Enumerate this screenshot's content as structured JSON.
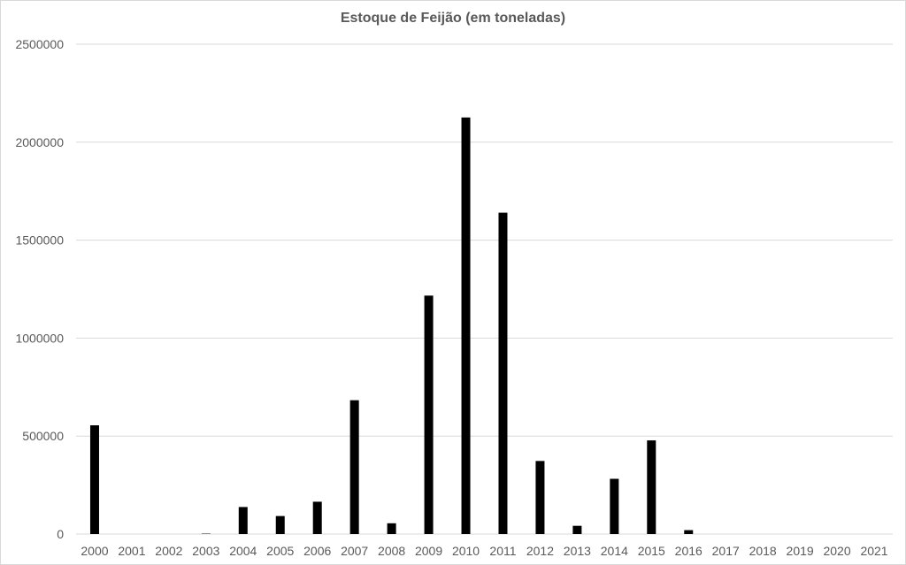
{
  "chart_data": {
    "type": "bar",
    "title": "Estoque de Feijão (em toneladas)",
    "xlabel": "",
    "ylabel": "",
    "categories": [
      "2000",
      "2001",
      "2002",
      "2003",
      "2004",
      "2005",
      "2006",
      "2007",
      "2008",
      "2009",
      "2010",
      "2011",
      "2012",
      "2013",
      "2014",
      "2015",
      "2016",
      "2017",
      "2018",
      "2019",
      "2020",
      "2021"
    ],
    "values": [
      555000,
      0,
      0,
      2000,
      138000,
      92000,
      165000,
      683000,
      55000,
      1217000,
      2126000,
      1640000,
      373000,
      42000,
      282000,
      478000,
      20000,
      0,
      0,
      0,
      0,
      0
    ],
    "ylim": [
      0,
      2500000
    ],
    "yticks": [
      "0",
      "500000",
      "1000000",
      "1500000",
      "2000000",
      "2500000"
    ],
    "grid": true,
    "legend": "none",
    "bar_color": "#000000",
    "grid_color": "#d9d9d9",
    "text_color": "#595959"
  }
}
